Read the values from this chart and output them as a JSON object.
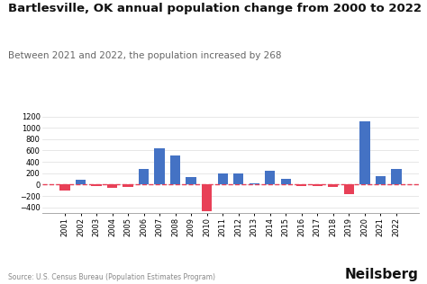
{
  "title": "Bartlesville, OK annual population change from 2000 to 2022",
  "subtitle": "Between 2021 and 2022, the population increased by 268",
  "source": "Source: U.S. Census Bureau (Population Estimates Program)",
  "branding": "Neilsberg",
  "years": [
    2001,
    2002,
    2003,
    2004,
    2005,
    2006,
    2007,
    2008,
    2009,
    2010,
    2011,
    2012,
    2013,
    2014,
    2015,
    2016,
    2017,
    2018,
    2019,
    2020,
    2021,
    2022
  ],
  "values": [
    -100,
    90,
    -30,
    -55,
    -40,
    275,
    640,
    520,
    130,
    -470,
    200,
    200,
    20,
    250,
    100,
    -30,
    -30,
    -40,
    -160,
    1120,
    150,
    268
  ],
  "bar_color_blue": "#4472C4",
  "bar_color_red": "#E84057",
  "dashed_line_color": "#E84057",
  "background_color": "#ffffff",
  "ylim": [
    -500,
    1350
  ],
  "yticks": [
    -400,
    -200,
    0,
    200,
    400,
    600,
    800,
    1000,
    1200
  ],
  "title_fontsize": 9.5,
  "subtitle_fontsize": 7.5,
  "source_fontsize": 5.5,
  "branding_fontsize": 11,
  "axis_fontsize": 6.0
}
